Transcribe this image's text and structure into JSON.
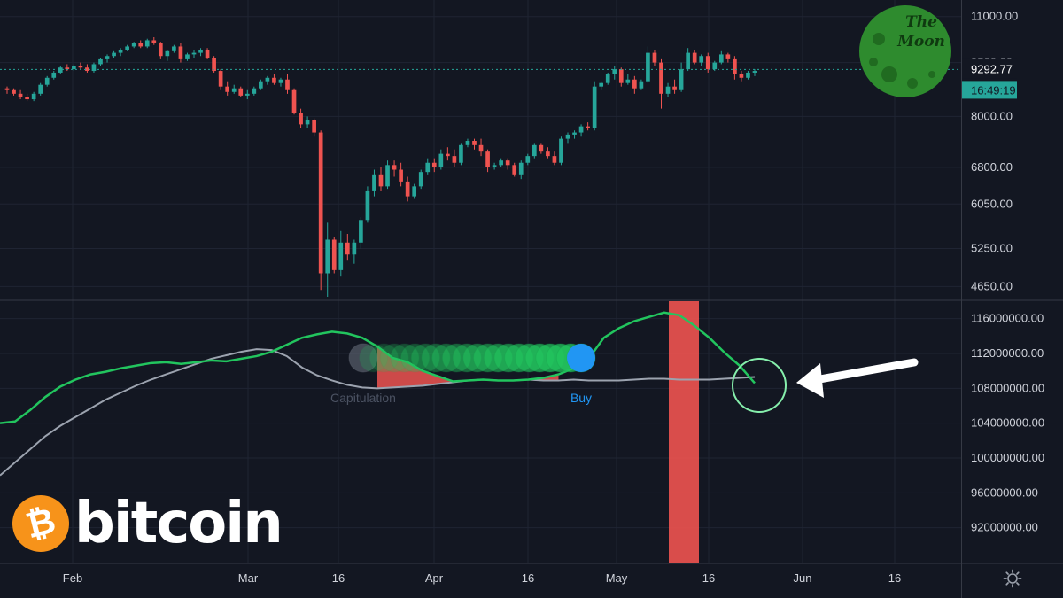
{
  "chart_data": [
    {
      "type": "candlestick",
      "title": "",
      "ylabel": "",
      "y_scale": "log",
      "ylim": [
        4500,
        11500
      ],
      "y_ticks": [
        "11000.00",
        "9500.00",
        "8000.00",
        "6800.00",
        "6050.00",
        "5250.00",
        "4650.00"
      ],
      "current_price": "9292.77",
      "countdown": "16:49:19",
      "grid": true,
      "candles": [
        [
          8750,
          8800,
          8600,
          8700
        ],
        [
          8700,
          8750,
          8550,
          8600
        ],
        [
          8600,
          8700,
          8450,
          8500
        ],
        [
          8500,
          8600,
          8400,
          8450
        ],
        [
          8450,
          8650,
          8400,
          8600
        ],
        [
          8600,
          8900,
          8550,
          8850
        ],
        [
          8850,
          9100,
          8800,
          9050
        ],
        [
          9050,
          9250,
          9000,
          9200
        ],
        [
          9200,
          9400,
          9150,
          9350
        ],
        [
          9350,
          9450,
          9250,
          9300
        ],
        [
          9300,
          9450,
          9250,
          9400
        ],
        [
          9400,
          9500,
          9300,
          9350
        ],
        [
          9350,
          9450,
          9200,
          9250
        ],
        [
          9250,
          9500,
          9200,
          9450
        ],
        [
          9450,
          9650,
          9400,
          9600
        ],
        [
          9600,
          9750,
          9500,
          9700
        ],
        [
          9700,
          9850,
          9650,
          9800
        ],
        [
          9800,
          9950,
          9700,
          9900
        ],
        [
          9900,
          10050,
          9850,
          10000
        ],
        [
          10000,
          10150,
          9950,
          10100
        ],
        [
          10100,
          10200,
          9950,
          10000
        ],
        [
          10000,
          10250,
          9950,
          10200
        ],
        [
          10200,
          10300,
          10050,
          10100
        ],
        [
          10100,
          10150,
          9600,
          9700
        ],
        [
          9700,
          9900,
          9550,
          9850
        ],
        [
          9850,
          10050,
          9800,
          10000
        ],
        [
          10000,
          10100,
          9500,
          9600
        ],
        [
          9600,
          9800,
          9550,
          9750
        ],
        [
          9750,
          9900,
          9650,
          9800
        ],
        [
          9800,
          9950,
          9700,
          9900
        ],
        [
          9900,
          9950,
          9600,
          9650
        ],
        [
          9650,
          9700,
          9200,
          9250
        ],
        [
          9250,
          9300,
          8700,
          8800
        ],
        [
          8800,
          8950,
          8550,
          8650
        ],
        [
          8650,
          8850,
          8600,
          8750
        ],
        [
          8750,
          8800,
          8500,
          8550
        ],
        [
          8550,
          8700,
          8450,
          8600
        ],
        [
          8600,
          8800,
          8550,
          8750
        ],
        [
          8750,
          9000,
          8700,
          8950
        ],
        [
          8950,
          9100,
          8850,
          9050
        ],
        [
          9050,
          9150,
          8850,
          8900
        ],
        [
          8900,
          9050,
          8800,
          9000
        ],
        [
          9000,
          9150,
          8600,
          8700
        ],
        [
          8700,
          8750,
          8050,
          8100
        ],
        [
          8100,
          8200,
          7700,
          7800
        ],
        [
          7800,
          8000,
          7700,
          7900
        ],
        [
          7900,
          7950,
          7500,
          7600
        ],
        [
          7600,
          7650,
          4600,
          4850
        ],
        [
          4850,
          5700,
          4500,
          5400
        ],
        [
          5400,
          5450,
          4850,
          4900
        ],
        [
          4900,
          5550,
          4800,
          5350
        ],
        [
          5350,
          5500,
          5050,
          5150
        ],
        [
          5150,
          5400,
          5000,
          5350
        ],
        [
          5350,
          5800,
          5250,
          5750
        ],
        [
          5750,
          6400,
          5700,
          6300
        ],
        [
          6300,
          6750,
          6200,
          6650
        ],
        [
          6650,
          6800,
          6300,
          6400
        ],
        [
          6400,
          6950,
          6350,
          6850
        ],
        [
          6850,
          6950,
          6600,
          6750
        ],
        [
          6750,
          6900,
          6400,
          6500
        ],
        [
          6500,
          6600,
          6100,
          6200
        ],
        [
          6200,
          6450,
          6150,
          6400
        ],
        [
          6400,
          6750,
          6350,
          6700
        ],
        [
          6700,
          7000,
          6650,
          6900
        ],
        [
          6900,
          7000,
          6700,
          6800
        ],
        [
          6800,
          7200,
          6750,
          7100
        ],
        [
          7100,
          7250,
          6950,
          7050
        ],
        [
          7050,
          7200,
          6800,
          6900
        ],
        [
          6900,
          7350,
          6850,
          7300
        ],
        [
          7300,
          7450,
          7250,
          7400
        ],
        [
          7400,
          7450,
          7200,
          7300
        ],
        [
          7300,
          7450,
          7050,
          7150
        ],
        [
          7150,
          7200,
          6700,
          6800
        ],
        [
          6800,
          6900,
          6750,
          6850
        ],
        [
          6850,
          7000,
          6800,
          6950
        ],
        [
          6950,
          7000,
          6750,
          6850
        ],
        [
          6850,
          6900,
          6600,
          6650
        ],
        [
          6650,
          6950,
          6550,
          6900
        ],
        [
          6900,
          7100,
          6850,
          7050
        ],
        [
          7050,
          7350,
          7000,
          7300
        ],
        [
          7300,
          7350,
          7100,
          7150
        ],
        [
          7150,
          7250,
          7000,
          7050
        ],
        [
          7050,
          7150,
          6850,
          6900
        ],
        [
          6900,
          7500,
          6850,
          7450
        ],
        [
          7450,
          7600,
          7350,
          7550
        ],
        [
          7550,
          7650,
          7450,
          7600
        ],
        [
          7600,
          7800,
          7500,
          7750
        ],
        [
          7750,
          7850,
          7650,
          7700
        ],
        [
          7700,
          8950,
          7650,
          8800
        ],
        [
          8800,
          8950,
          8700,
          8900
        ],
        [
          8900,
          9200,
          8850,
          9150
        ],
        [
          9150,
          9400,
          9000,
          9300
        ],
        [
          9300,
          9350,
          8800,
          8900
        ],
        [
          8900,
          9150,
          8850,
          9000
        ],
        [
          9000,
          9100,
          8600,
          8750
        ],
        [
          8750,
          9000,
          8700,
          8950
        ],
        [
          8950,
          10000,
          8900,
          9800
        ],
        [
          9800,
          9900,
          9400,
          9500
        ],
        [
          9500,
          9600,
          8200,
          8600
        ],
        [
          8600,
          8900,
          8500,
          8800
        ],
        [
          8800,
          9000,
          8600,
          8700
        ],
        [
          8700,
          9500,
          8650,
          9300
        ],
        [
          9300,
          9950,
          9250,
          9800
        ],
        [
          9800,
          9900,
          9450,
          9500
        ],
        [
          9500,
          9750,
          9400,
          9700
        ],
        [
          9700,
          9800,
          9200,
          9300
        ],
        [
          9300,
          9550,
          9250,
          9500
        ],
        [
          9500,
          9850,
          9450,
          9750
        ],
        [
          9750,
          9800,
          9500,
          9600
        ],
        [
          9600,
          9700,
          9000,
          9150
        ],
        [
          9150,
          9250,
          8950,
          9050
        ],
        [
          9050,
          9250,
          9000,
          9200
        ],
        [
          9200,
          9300,
          9100,
          9250
        ]
      ],
      "up_color": "#26a69a",
      "down_color": "#ef5350"
    },
    {
      "type": "line",
      "title": "",
      "ylabel": "",
      "ylim": [
        88000000,
        118000000
      ],
      "y_ticks": [
        "116000000.00",
        "112000000.00",
        "108000000.00",
        "104000000.00",
        "100000000.00",
        "96000000.00",
        "92000000.00"
      ],
      "series": [
        {
          "name": "",
          "color": "#22c55e",
          "values": [
            104000000,
            104200000,
            105500000,
            107000000,
            108200000,
            109000000,
            109600000,
            109900000,
            110300000,
            110600000,
            110900000,
            111000000,
            110800000,
            111000000,
            111200000,
            111100000,
            111400000,
            111700000,
            112200000,
            113000000,
            113800000,
            114200000,
            114500000,
            114300000,
            113800000,
            112800000,
            111500000,
            111000000,
            110000000,
            109400000,
            108800000,
            108900000,
            109000000,
            108900000,
            108900000,
            109000000,
            109200000,
            109600000,
            110300000,
            111400000,
            113800000,
            114900000,
            115700000,
            116200000,
            116700000,
            116400000,
            115200000,
            113800000,
            112100000,
            110600000,
            108600000
          ]
        },
        {
          "name": "",
          "color": "#9ca3af",
          "values": [
            98000000,
            99500000,
            101000000,
            102500000,
            103700000,
            104700000,
            105700000,
            106700000,
            107500000,
            108300000,
            109000000,
            109600000,
            110200000,
            110800000,
            111400000,
            111800000,
            112200000,
            112500000,
            112400000,
            111700000,
            110400000,
            109500000,
            108900000,
            108400000,
            108100000,
            108000000,
            108100000,
            108200000,
            108300000,
            108500000,
            108700000,
            108900000,
            109000000,
            108900000,
            108900000,
            109000000,
            108900000,
            108900000,
            109000000,
            108900000,
            108900000,
            108900000,
            109000000,
            109100000,
            109100000,
            109000000,
            109000000,
            109000000,
            109100000,
            109200000,
            109300000
          ]
        }
      ],
      "shaded_region_color": "#ef5350",
      "highlight_color": "#ef5350",
      "annotations": [
        "Capitulation",
        "Buy"
      ]
    }
  ],
  "time_axis": {
    "labels": [
      "Feb",
      "Mar",
      "16",
      "Apr",
      "16",
      "May",
      "16",
      "Jun",
      "16"
    ]
  },
  "logos": {
    "bitcoin_word": "bitcoin",
    "bitcoin_symbol": "₿",
    "moon_text_line1": "The",
    "moon_text_line2": "Moon"
  },
  "icons": {
    "settings": "gear-icon",
    "arrow": "arrow-left-icon"
  }
}
